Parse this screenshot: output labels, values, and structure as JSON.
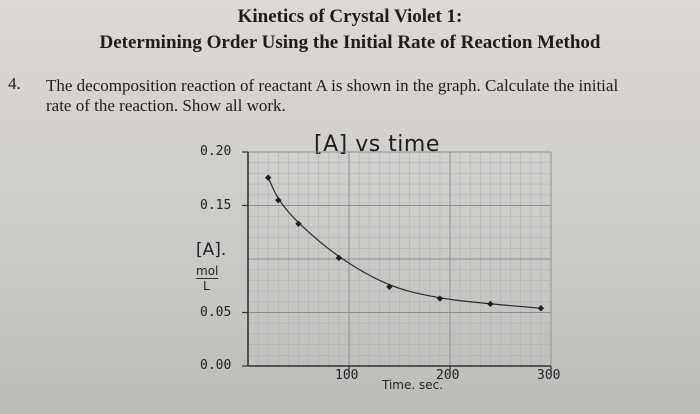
{
  "document": {
    "title_line1": "Kinetics of Crystal Violet 1:",
    "title_line2": "Determining Order Using the Initial Rate of Reaction Method",
    "question_number": "4.",
    "question_line1": "The decomposition reaction of reactant   A is shown in the graph.  Calculate the initial",
    "question_line2": "rate of the reaction.  Show all work."
  },
  "chart_data": {
    "type": "line",
    "title": "[A] vs time",
    "xlabel": "Time. sec.",
    "ylabel_top": "[A].",
    "ylabel_num": "mol",
    "ylabel_den": "L",
    "x_ticks": [
      {
        "value": 100,
        "label": "100"
      },
      {
        "value": 200,
        "label": "200"
      },
      {
        "value": 300,
        "label": "300"
      }
    ],
    "y_ticks": [
      {
        "value": 0.2,
        "label": "0.20"
      },
      {
        "value": 0.15,
        "label": "0.15"
      },
      {
        "value": 0.05,
        "label": "0.05"
      },
      {
        "value": 0.0,
        "label": "0.00"
      }
    ],
    "xlim": [
      0,
      300
    ],
    "ylim": [
      0,
      0.2
    ],
    "grid": true,
    "series": [
      {
        "name": "[A]",
        "x": [
          20,
          30,
          50,
          90,
          140,
          190,
          240,
          290
        ],
        "y": [
          0.176,
          0.155,
          0.133,
          0.101,
          0.074,
          0.063,
          0.058,
          0.054
        ]
      }
    ]
  }
}
